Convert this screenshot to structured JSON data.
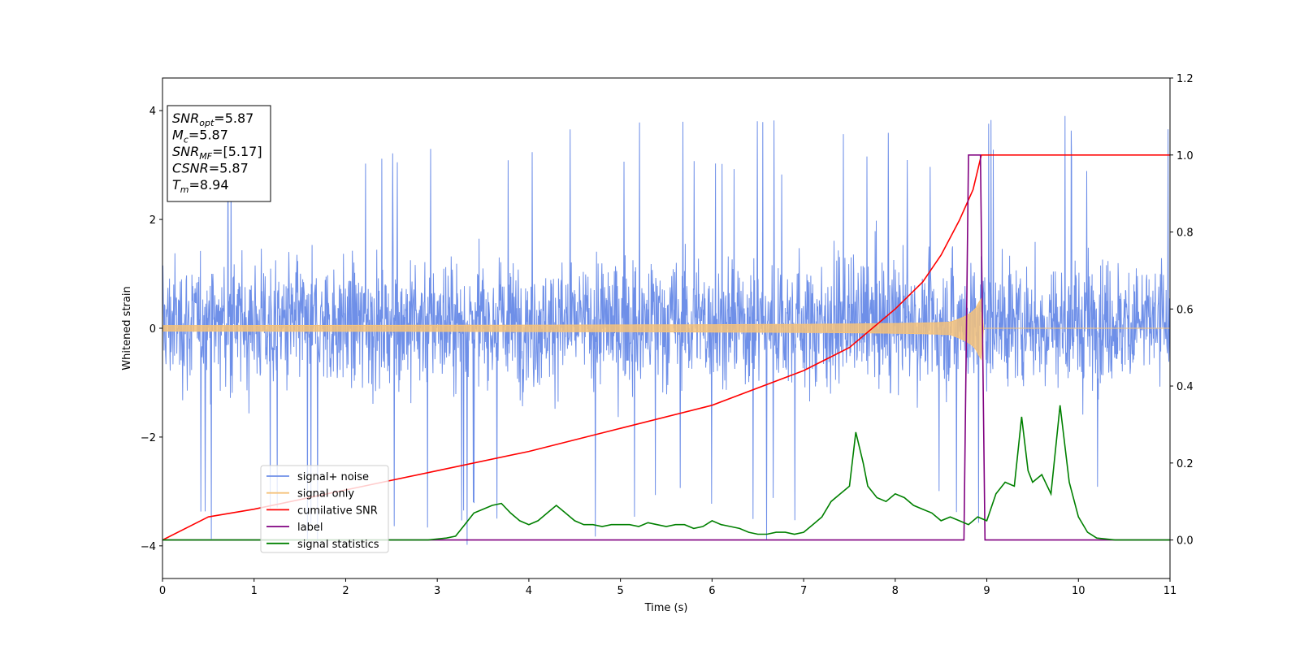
{
  "chart_data": {
    "type": "line",
    "xlabel": "Time (s)",
    "ylabel": "Whitened strain",
    "xlim": [
      0,
      11
    ],
    "ylim_left": [
      -4.6,
      4.6
    ],
    "ylim_right": [
      -0.1,
      1.2
    ],
    "xticks": [
      0,
      1,
      2,
      3,
      4,
      5,
      6,
      7,
      8,
      9,
      10,
      11
    ],
    "yticks_left": [
      -4,
      -2,
      0,
      2,
      4
    ],
    "yticks_right": [
      "0.0",
      "0.2",
      "0.4",
      "0.6",
      "0.8",
      "1.0",
      "1.2"
    ],
    "legend_position": "lower-left",
    "grid": false,
    "annotation": {
      "lines": [
        {
          "base": "SNR",
          "sub": "opt",
          "value": "=5.87"
        },
        {
          "base": "M",
          "sub": "c",
          "value": "=5.87"
        },
        {
          "base": "SNR",
          "sub": "MF",
          "value": "=[5.17]"
        },
        {
          "base": "CSNR",
          "sub": "",
          "value": "=5.87"
        },
        {
          "base": "T",
          "sub": "m",
          "value": "=8.94"
        }
      ]
    },
    "series": [
      {
        "name": "signal+ noise",
        "color": "#6e8fe8",
        "axis": "left",
        "description_envelope": {
          "low_typical": -1.8,
          "high_typical": 2.2,
          "spike_max": 4.15,
          "spike_min": -4.15
        }
      },
      {
        "name": "signal only",
        "color": "#f5c27a",
        "axis": "left",
        "chirp": {
          "start_amp": 0.05,
          "peak_amp": 0.7,
          "merger_time": 8.94
        }
      },
      {
        "name": "cumilative SNR",
        "color": "#ff0000",
        "axis": "right",
        "x": [
          0,
          0.5,
          1,
          2,
          3,
          4,
          5,
          6,
          7,
          7.5,
          8,
          8.3,
          8.5,
          8.7,
          8.85,
          8.94,
          11
        ],
        "y": [
          0.0,
          0.06,
          0.08,
          0.13,
          0.18,
          0.23,
          0.29,
          0.35,
          0.44,
          0.5,
          0.6,
          0.67,
          0.74,
          0.83,
          0.91,
          1.0,
          1.0
        ]
      },
      {
        "name": "label",
        "color": "#800080",
        "axis": "right",
        "x": [
          0,
          8.75,
          8.8,
          8.93,
          8.98,
          11
        ],
        "y": [
          0,
          0,
          1,
          1,
          0,
          0
        ]
      },
      {
        "name": "signal statistics",
        "color": "#008000",
        "axis": "right",
        "x": [
          0,
          0.5,
          1,
          1.5,
          2,
          2.5,
          2.9,
          3.1,
          3.2,
          3.3,
          3.4,
          3.5,
          3.6,
          3.7,
          3.8,
          3.9,
          4.0,
          4.1,
          4.2,
          4.3,
          4.4,
          4.5,
          4.6,
          4.7,
          4.8,
          4.9,
          5.0,
          5.1,
          5.2,
          5.3,
          5.4,
          5.5,
          5.6,
          5.7,
          5.8,
          5.9,
          6.0,
          6.1,
          6.2,
          6.3,
          6.4,
          6.5,
          6.6,
          6.7,
          6.8,
          6.9,
          7.0,
          7.1,
          7.2,
          7.3,
          7.4,
          7.5,
          7.57,
          7.65,
          7.7,
          7.8,
          7.9,
          8.0,
          8.1,
          8.2,
          8.3,
          8.4,
          8.5,
          8.6,
          8.7,
          8.8,
          8.9,
          9.0,
          9.1,
          9.2,
          9.3,
          9.38,
          9.45,
          9.5,
          9.6,
          9.7,
          9.8,
          9.9,
          10.0,
          10.1,
          10.2,
          10.4,
          10.6,
          11
        ],
        "y": [
          0.0,
          0.0,
          0.0,
          0.0,
          0.0,
          0.0,
          0.0,
          0.005,
          0.01,
          0.04,
          0.07,
          0.08,
          0.09,
          0.095,
          0.07,
          0.05,
          0.04,
          0.05,
          0.07,
          0.09,
          0.07,
          0.05,
          0.04,
          0.04,
          0.035,
          0.04,
          0.04,
          0.04,
          0.035,
          0.045,
          0.04,
          0.035,
          0.04,
          0.04,
          0.03,
          0.035,
          0.05,
          0.04,
          0.035,
          0.03,
          0.02,
          0.015,
          0.015,
          0.02,
          0.02,
          0.015,
          0.02,
          0.04,
          0.06,
          0.1,
          0.12,
          0.14,
          0.28,
          0.2,
          0.14,
          0.11,
          0.1,
          0.12,
          0.11,
          0.09,
          0.08,
          0.07,
          0.05,
          0.06,
          0.05,
          0.04,
          0.06,
          0.05,
          0.12,
          0.15,
          0.14,
          0.32,
          0.18,
          0.15,
          0.17,
          0.12,
          0.35,
          0.15,
          0.06,
          0.02,
          0.005,
          0.0,
          0.0,
          0.0
        ]
      }
    ]
  }
}
